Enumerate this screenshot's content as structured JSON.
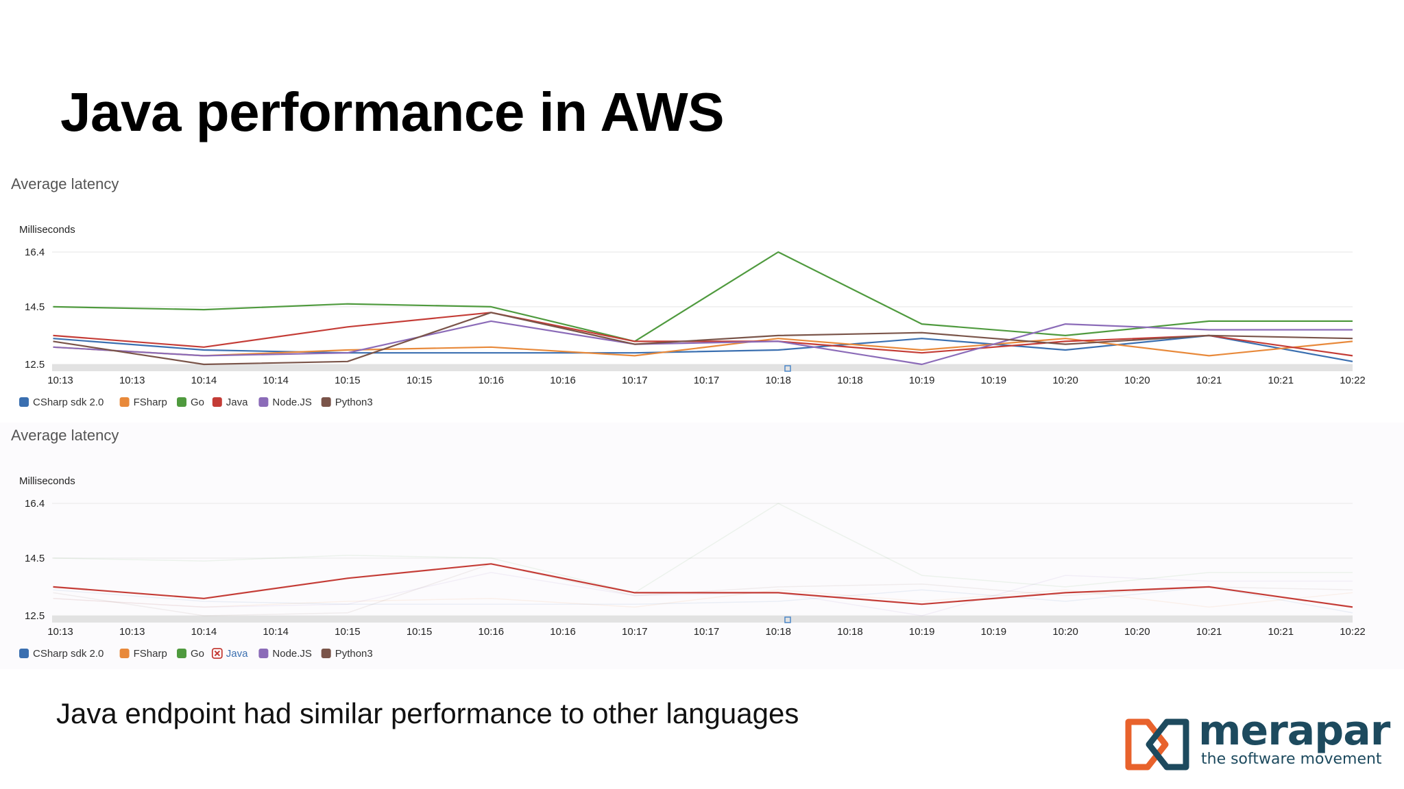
{
  "slide": {
    "title": "Java performance in AWS",
    "caption": "Java endpoint had similar performance to other languages"
  },
  "logo": {
    "name": "merapar",
    "tagline": "the software movement"
  },
  "colors": {
    "CSharp sdk 2.0": "#3a6fb0",
    "FSharp": "#e8893a",
    "Go": "#4f9a3e",
    "Java": "#c43c36",
    "Node.JS": "#8b6bb8",
    "Python3": "#7a5449",
    "grid": "#eeeeee",
    "axis_band": "#e2e2e2"
  },
  "chart_data": [
    {
      "type": "line",
      "title": "Average latency",
      "ylabel": "Milliseconds",
      "y_ticks": [
        "16.4",
        "14.5",
        "12.5"
      ],
      "ylim": [
        12.5,
        16.4
      ],
      "x_ticks": [
        "10:13",
        "10:13",
        "10:14",
        "10:14",
        "10:15",
        "10:15",
        "10:16",
        "10:16",
        "10:17",
        "10:17",
        "10:18",
        "10:18",
        "10:19",
        "10:19",
        "10:20",
        "10:20",
        "10:21",
        "10:21",
        "10:22"
      ],
      "x_positions": [
        0,
        1,
        2,
        3,
        4,
        5,
        6,
        7,
        8,
        9,
        10,
        11,
        12,
        13,
        14,
        15,
        16,
        17,
        18
      ],
      "legend": [
        "CSharp sdk 2.0",
        "FSharp",
        "Go",
        "Java",
        "Node.JS",
        "Python3"
      ],
      "series": [
        {
          "name": "CSharp sdk 2.0",
          "visible": true,
          "x": [
            -0.1,
            2,
            4,
            6,
            8,
            10,
            12,
            14,
            16,
            18
          ],
          "values": [
            13.4,
            13.0,
            12.9,
            12.9,
            12.9,
            13.0,
            13.4,
            13.0,
            13.5,
            12.6
          ]
        },
        {
          "name": "FSharp",
          "visible": true,
          "x": [
            -0.1,
            2,
            4,
            6,
            8,
            10,
            12,
            14,
            16,
            18
          ],
          "values": [
            13.1,
            12.8,
            13.0,
            13.1,
            12.8,
            13.4,
            13.0,
            13.4,
            12.8,
            13.3
          ]
        },
        {
          "name": "Go",
          "visible": true,
          "x": [
            -0.1,
            2,
            4,
            6,
            8,
            10,
            12,
            14,
            16,
            18
          ],
          "values": [
            14.5,
            14.4,
            14.6,
            14.5,
            13.3,
            16.4,
            13.9,
            13.5,
            14.0,
            14.0
          ]
        },
        {
          "name": "Java",
          "visible": true,
          "x": [
            -0.1,
            2,
            4,
            6,
            8,
            10,
            12,
            14,
            16,
            18
          ],
          "values": [
            13.5,
            13.1,
            13.8,
            14.3,
            13.3,
            13.3,
            12.9,
            13.3,
            13.5,
            12.8
          ]
        },
        {
          "name": "Node.JS",
          "visible": true,
          "x": [
            -0.1,
            2,
            4,
            6,
            8,
            10,
            12,
            14,
            16,
            18
          ],
          "values": [
            13.1,
            12.8,
            12.9,
            14.0,
            13.2,
            13.3,
            12.5,
            13.9,
            13.7,
            13.7
          ]
        },
        {
          "name": "Python3",
          "visible": true,
          "x": [
            -0.1,
            2,
            4,
            6,
            8,
            10,
            12,
            14,
            16,
            18
          ],
          "values": [
            13.3,
            12.5,
            12.6,
            14.3,
            13.2,
            13.5,
            13.6,
            13.2,
            13.5,
            13.4
          ]
        }
      ]
    },
    {
      "type": "line",
      "title": "Average latency",
      "ylabel": "Milliseconds",
      "y_ticks": [
        "16.4",
        "14.5",
        "12.5"
      ],
      "ylim": [
        12.5,
        16.4
      ],
      "x_ticks": [
        "10:13",
        "10:13",
        "10:14",
        "10:14",
        "10:15",
        "10:15",
        "10:16",
        "10:16",
        "10:17",
        "10:17",
        "10:18",
        "10:18",
        "10:19",
        "10:19",
        "10:20",
        "10:20",
        "10:21",
        "10:21",
        "10:22"
      ],
      "x_positions": [
        0,
        1,
        2,
        3,
        4,
        5,
        6,
        7,
        8,
        9,
        10,
        11,
        12,
        13,
        14,
        15,
        16,
        17,
        18
      ],
      "legend": [
        "CSharp sdk 2.0",
        "FSharp",
        "Go",
        "Java",
        "Node.JS",
        "Python3"
      ],
      "hidden_series_note": "Java selected; other series faded",
      "series": [
        {
          "name": "CSharp sdk 2.0",
          "visible": false,
          "x": [
            -0.1,
            2,
            4,
            6,
            8,
            10,
            12,
            14,
            16,
            18
          ],
          "values": [
            13.4,
            13.0,
            12.9,
            12.9,
            12.9,
            13.0,
            13.4,
            13.0,
            13.5,
            12.6
          ]
        },
        {
          "name": "FSharp",
          "visible": false,
          "x": [
            -0.1,
            2,
            4,
            6,
            8,
            10,
            12,
            14,
            16,
            18
          ],
          "values": [
            13.1,
            12.8,
            13.0,
            13.1,
            12.8,
            13.4,
            13.0,
            13.4,
            12.8,
            13.3
          ]
        },
        {
          "name": "Go",
          "visible": false,
          "x": [
            -0.1,
            2,
            4,
            6,
            8,
            10,
            12,
            14,
            16,
            18
          ],
          "values": [
            14.5,
            14.4,
            14.6,
            14.5,
            13.3,
            16.4,
            13.9,
            13.5,
            14.0,
            14.0
          ]
        },
        {
          "name": "Java",
          "visible": true,
          "x": [
            -0.1,
            2,
            4,
            6,
            8,
            10,
            12,
            14,
            16,
            18
          ],
          "values": [
            13.5,
            13.1,
            13.8,
            14.3,
            13.3,
            13.3,
            12.9,
            13.3,
            13.5,
            12.8
          ]
        },
        {
          "name": "Node.JS",
          "visible": false,
          "x": [
            -0.1,
            2,
            4,
            6,
            8,
            10,
            12,
            14,
            16,
            18
          ],
          "values": [
            13.1,
            12.8,
            12.9,
            14.0,
            13.2,
            13.3,
            12.5,
            13.9,
            13.7,
            13.7
          ]
        },
        {
          "name": "Python3",
          "visible": false,
          "x": [
            -0.1,
            2,
            4,
            6,
            8,
            10,
            12,
            14,
            16,
            18
          ],
          "values": [
            13.3,
            12.5,
            12.6,
            14.3,
            13.2,
            13.5,
            13.6,
            13.2,
            13.5,
            13.4
          ]
        }
      ]
    }
  ]
}
